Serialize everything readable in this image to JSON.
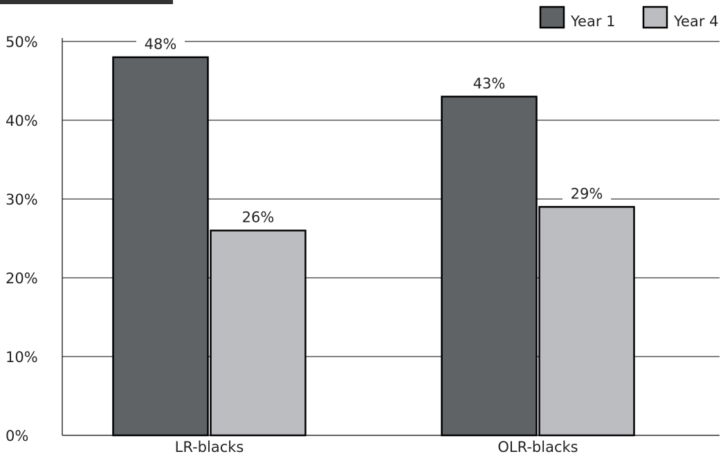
{
  "chart_data": {
    "type": "bar",
    "title": "",
    "xlabel": "",
    "ylabel": "",
    "categories": [
      "LR-blacks",
      "OLR-blacks"
    ],
    "series": [
      {
        "name": "Year 1",
        "values": [
          48,
          43
        ],
        "labels": [
          "48%",
          "43%"
        ],
        "color": "#5f6366"
      },
      {
        "name": "Year 4",
        "values": [
          26,
          29
        ],
        "labels": [
          "26%",
          "29%"
        ],
        "color": "#bbbdc0"
      }
    ],
    "ylim": [
      0,
      50
    ],
    "yticks": [
      0,
      10,
      20,
      30,
      40,
      50
    ],
    "ytick_labels": [
      "0%",
      "10%",
      "20%",
      "30%",
      "40%",
      "50%"
    ],
    "grid": true,
    "legend_position": "top-right"
  }
}
